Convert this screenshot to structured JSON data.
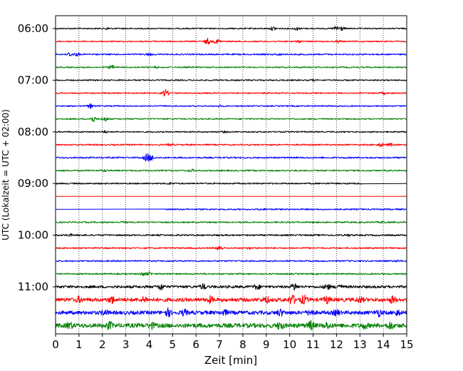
{
  "chart_data": {
    "type": "line",
    "title": "",
    "xlabel": "Zeit  [min]",
    "ylabel": "UTC (Lokalzeit = UTC + 02:00)",
    "xlim": [
      0,
      15
    ],
    "x_ticks": [
      0,
      1,
      2,
      3,
      4,
      5,
      6,
      7,
      8,
      9,
      10,
      11,
      12,
      13,
      14,
      15
    ],
    "y_ticks": [
      {
        "label": "06:00",
        "trace": 0
      },
      {
        "label": "07:00",
        "trace": 4
      },
      {
        "label": "08:00",
        "trace": 8
      },
      {
        "label": "09:00",
        "trace": 12
      },
      {
        "label": "10:00",
        "trace": 16
      },
      {
        "label": "11:00",
        "trace": 20
      }
    ],
    "grid": "vertical dotted",
    "trace_minutes": 15,
    "colors": [
      "#000000",
      "#ff0000",
      "#0000ff",
      "#008000"
    ],
    "traces": [
      {
        "start": "06:00",
        "noise": 0.9,
        "events": [
          [
            2.2,
            1.2
          ],
          [
            9.3,
            2.4
          ],
          [
            10.3,
            2.0
          ],
          [
            12.0,
            3.2
          ],
          [
            12.2,
            2.4
          ]
        ]
      },
      {
        "start": "06:15",
        "noise": 0.9,
        "events": [
          [
            6.5,
            4.0
          ],
          [
            6.9,
            3.0
          ],
          [
            10.4,
            1.0
          ],
          [
            12.1,
            1.2
          ]
        ]
      },
      {
        "start": "06:30",
        "noise": 1.0,
        "events": [
          [
            0.6,
            2.4
          ],
          [
            0.9,
            1.8
          ],
          [
            4.0,
            1.0
          ],
          [
            9.5,
            1.0
          ]
        ]
      },
      {
        "start": "06:45",
        "noise": 0.9,
        "events": [
          [
            2.4,
            2.2
          ],
          [
            4.3,
            0.8
          ]
        ]
      },
      {
        "start": "07:00",
        "noise": 0.9,
        "events": [
          [
            11.0,
            0.8
          ]
        ]
      },
      {
        "start": "07:15",
        "noise": 0.9,
        "events": [
          [
            4.7,
            4.8
          ],
          [
            14.0,
            1.2
          ]
        ]
      },
      {
        "start": "07:30",
        "noise": 0.9,
        "events": [
          [
            1.5,
            2.6
          ],
          [
            7.0,
            1.0
          ]
        ]
      },
      {
        "start": "07:45",
        "noise": 0.9,
        "events": [
          [
            1.6,
            4.0
          ],
          [
            2.1,
            3.0
          ]
        ]
      },
      {
        "start": "08:00",
        "noise": 0.9,
        "events": [
          [
            2.1,
            1.2
          ],
          [
            7.2,
            0.8
          ]
        ]
      },
      {
        "start": "08:15",
        "noise": 1.0,
        "events": [
          [
            4.9,
            1.2
          ],
          [
            13.9,
            2.2
          ],
          [
            14.3,
            1.6
          ]
        ]
      },
      {
        "start": "08:30",
        "noise": 1.1,
        "events": [
          [
            3.9,
            5.0
          ],
          [
            4.1,
            3.2
          ]
        ]
      },
      {
        "start": "08:45",
        "noise": 1.0,
        "events": [
          [
            2.1,
            1.2
          ],
          [
            5.8,
            1.4
          ]
        ]
      },
      {
        "start": "09:00",
        "noise": 1.0,
        "end": 13.1,
        "events": [
          [
            4.9,
            1.0
          ]
        ]
      },
      {
        "start": "09:15",
        "noise": 0,
        "events": []
      },
      {
        "start": "09:30",
        "noise": 1.0,
        "start_min": 4.7,
        "events": [
          [
            8.8,
            1.0
          ]
        ]
      },
      {
        "start": "09:45",
        "noise": 1.0,
        "events": [
          [
            2.9,
            1.0
          ],
          [
            14.0,
            1.0
          ]
        ]
      },
      {
        "start": "10:00",
        "noise": 1.1,
        "events": [
          [
            0.6,
            1.2
          ],
          [
            12.5,
            1.0
          ]
        ]
      },
      {
        "start": "10:15",
        "noise": 1.0,
        "events": [
          [
            7.0,
            4.0
          ],
          [
            8.3,
            1.2
          ]
        ]
      },
      {
        "start": "10:30",
        "noise": 1.0,
        "events": [
          [
            14.6,
            1.2
          ]
        ]
      },
      {
        "start": "10:45",
        "noise": 1.0,
        "events": [
          [
            3.7,
            2.2
          ],
          [
            4.0,
            2.0
          ]
        ]
      },
      {
        "start": "11:00",
        "noise": 1.8,
        "events": [
          [
            4.5,
            4.0
          ],
          [
            6.3,
            3.2
          ],
          [
            8.6,
            3.0
          ],
          [
            10.2,
            4.5
          ],
          [
            11.6,
            3.4
          ],
          [
            12.1,
            3.2
          ]
        ]
      },
      {
        "start": "11:15",
        "noise": 2.6,
        "events": [
          [
            1.0,
            3.0
          ],
          [
            2.4,
            4.0
          ],
          [
            3.8,
            3.0
          ],
          [
            6.6,
            3.6
          ],
          [
            9.0,
            3.6
          ],
          [
            10.1,
            6.0
          ],
          [
            10.6,
            5.0
          ],
          [
            11.6,
            4.0
          ],
          [
            13.0,
            3.0
          ],
          [
            14.4,
            4.0
          ]
        ]
      },
      {
        "start": "11:30",
        "noise": 2.6,
        "events": [
          [
            2.1,
            3.0
          ],
          [
            4.8,
            4.4
          ],
          [
            5.5,
            3.2
          ],
          [
            7.2,
            3.0
          ],
          [
            9.6,
            3.8
          ],
          [
            10.9,
            4.0
          ],
          [
            12.0,
            3.0
          ],
          [
            13.8,
            4.0
          ],
          [
            14.6,
            3.0
          ]
        ]
      },
      {
        "start": "11:45",
        "noise": 3.0,
        "events": [
          [
            0.6,
            3.6
          ],
          [
            2.3,
            4.0
          ],
          [
            4.1,
            3.4
          ],
          [
            9.6,
            4.5
          ],
          [
            10.9,
            5.0
          ],
          [
            11.6,
            3.2
          ],
          [
            13.2,
            3.0
          ],
          [
            14.3,
            4.0
          ]
        ]
      }
    ]
  }
}
